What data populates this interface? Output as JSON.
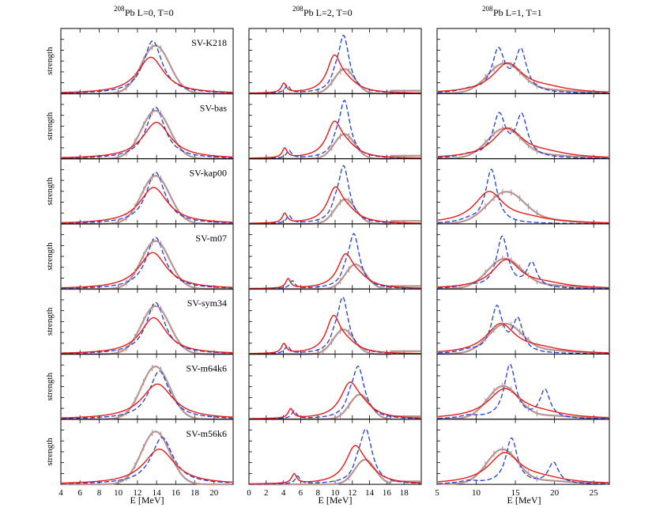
{
  "figure": {
    "ylabel": "strength",
    "xlabel": "E [MeV]",
    "columns": [
      {
        "title_sup": "208",
        "title": "Pb   L=0, T=0",
        "xlim": [
          4,
          22
        ],
        "ticks": [
          4,
          6,
          8,
          10,
          12,
          14,
          16,
          18,
          20
        ]
      },
      {
        "title_sup": "208",
        "title": "Pb   L=2, T=0",
        "xlim": [
          0,
          20
        ],
        "ticks": [
          0,
          2,
          4,
          6,
          8,
          10,
          12,
          14,
          16,
          18
        ]
      },
      {
        "title_sup": "208",
        "title": "Pb   L=1, T=1",
        "xlim": [
          5,
          27
        ],
        "ticks": [
          5,
          10,
          15,
          20,
          25
        ]
      }
    ],
    "rows": [
      "SV-K218",
      "SV-bas",
      "SV-kap00",
      "SV-m07",
      "SV-sym34",
      "SV-m64k6",
      "SV-m56k6"
    ]
  },
  "legend_styles": {
    "red_solid": "#e41a1c",
    "blue_dashed": "#1f3bd6",
    "grey_experiment": "#b89595"
  },
  "chart_data": [
    {
      "type": "line",
      "title": "208Pb L=0, T=0",
      "xlabel": "E [MeV]",
      "ylabel": "strength",
      "xlim": [
        4,
        22
      ],
      "panels": [
        {
          "label": "SV-K218",
          "red": {
            "E": 13.4,
            "w": 1.7,
            "h": 0.62
          },
          "blue": {
            "E": 13.6,
            "w": 1.2,
            "h": 0.9
          },
          "grey": {
            "E": 13.9,
            "w": 1.5,
            "h": 0.82
          }
        },
        {
          "label": "SV-bas",
          "red": {
            "E": 14.0,
            "w": 1.8,
            "h": 0.62
          },
          "blue": {
            "E": 13.9,
            "w": 1.2,
            "h": 0.88
          },
          "grey": {
            "E": 13.9,
            "w": 1.5,
            "h": 0.82
          }
        },
        {
          "label": "SV-kap00",
          "red": {
            "E": 13.7,
            "w": 1.8,
            "h": 0.62
          },
          "blue": {
            "E": 13.9,
            "w": 1.2,
            "h": 0.88
          },
          "grey": {
            "E": 13.9,
            "w": 1.5,
            "h": 0.82
          }
        },
        {
          "label": "SV-m07",
          "red": {
            "E": 13.6,
            "w": 1.8,
            "h": 0.62
          },
          "blue": {
            "E": 13.9,
            "w": 1.2,
            "h": 0.88
          },
          "grey": {
            "E": 13.9,
            "w": 1.5,
            "h": 0.82
          }
        },
        {
          "label": "SV-sym34",
          "red": {
            "E": 13.7,
            "w": 1.7,
            "h": 0.62
          },
          "blue": {
            "E": 13.9,
            "w": 1.2,
            "h": 0.88
          },
          "grey": {
            "E": 13.9,
            "w": 1.5,
            "h": 0.82
          }
        },
        {
          "label": "SV-m64k6",
          "red": {
            "E": 14.1,
            "w": 2.0,
            "h": 0.6
          },
          "blue": {
            "E": 14.3,
            "w": 1.3,
            "h": 0.82
          },
          "grey": {
            "E": 13.9,
            "w": 1.5,
            "h": 0.9
          }
        },
        {
          "label": "SV-m56k6",
          "red": {
            "E": 14.3,
            "w": 2.0,
            "h": 0.6
          },
          "blue": {
            "E": 14.6,
            "w": 1.4,
            "h": 0.8
          },
          "grey": {
            "E": 13.9,
            "w": 1.5,
            "h": 0.9
          }
        }
      ]
    },
    {
      "type": "line",
      "title": "208Pb L=2, T=0",
      "xlabel": "E [MeV]",
      "ylabel": "strength",
      "xlim": [
        0,
        20
      ],
      "panels": [
        {
          "label": "SV-K218",
          "red_low": 4.0,
          "blue_low": 4.4,
          "red": {
            "E": 9.9,
            "w": 1.0,
            "h": 0.58
          },
          "blue": {
            "E": 11.0,
            "w": 0.8,
            "h": 0.97
          }
        },
        {
          "label": "SV-bas",
          "red_low": 4.1,
          "blue_low": 4.6,
          "red": {
            "E": 9.9,
            "w": 1.1,
            "h": 0.56
          },
          "blue": {
            "E": 11.1,
            "w": 0.8,
            "h": 0.97
          }
        },
        {
          "label": "SV-kap00",
          "red_low": 4.1,
          "blue_low": 4.6,
          "red": {
            "E": 10.0,
            "w": 1.1,
            "h": 0.55
          },
          "blue": {
            "E": 11.0,
            "w": 0.8,
            "h": 0.97
          }
        },
        {
          "label": "SV-m07",
          "red_low": 4.5,
          "blue_low": 5.0,
          "red": {
            "E": 11.2,
            "w": 1.1,
            "h": 0.52
          },
          "blue": {
            "E": 12.2,
            "w": 0.8,
            "h": 0.92
          }
        },
        {
          "label": "SV-sym34",
          "red_low": 4.0,
          "blue_low": 4.4,
          "red": {
            "E": 9.8,
            "w": 1.0,
            "h": 0.58
          },
          "blue": {
            "E": 10.9,
            "w": 0.8,
            "h": 0.95
          }
        },
        {
          "label": "SV-m64k6",
          "red_low": 4.8,
          "blue_low": 5.2,
          "red": {
            "E": 11.7,
            "w": 1.3,
            "h": 0.55
          },
          "blue": {
            "E": 12.7,
            "w": 0.9,
            "h": 0.88
          }
        },
        {
          "label": "SV-m56k6",
          "red_low": 5.2,
          "blue_low": 5.6,
          "red": {
            "E": 12.3,
            "w": 1.3,
            "h": 0.58
          },
          "blue": {
            "E": 13.6,
            "w": 0.9,
            "h": 0.92
          }
        }
      ]
    },
    {
      "type": "line",
      "title": "208Pb L=1, T=1",
      "xlabel": "E [MeV]",
      "ylabel": "strength",
      "xlim": [
        5,
        27
      ],
      "panels": [
        {
          "label": "SV-K218",
          "red": {
            "E": 14.0,
            "w": 2.4,
            "h": 0.5
          },
          "blue": [
            {
              "E": 12.8,
              "w": 1.0,
              "h": 0.72
            },
            {
              "E": 15.7,
              "w": 0.9,
              "h": 0.7
            }
          ],
          "grey": {
            "E": 13.6,
            "w": 2.2,
            "h": 0.5
          }
        },
        {
          "label": "SV-bas",
          "red": {
            "E": 14.0,
            "w": 2.4,
            "h": 0.5
          },
          "blue": [
            {
              "E": 12.9,
              "w": 1.0,
              "h": 0.72
            },
            {
              "E": 15.8,
              "w": 0.9,
              "h": 0.7
            }
          ],
          "grey": {
            "E": 13.6,
            "w": 2.2,
            "h": 0.5
          }
        },
        {
          "label": "SV-kap00",
          "red": {
            "E": 11.6,
            "w": 2.3,
            "h": 0.53
          },
          "blue": [
            {
              "E": 11.9,
              "w": 0.9,
              "h": 0.92
            }
          ],
          "grey": {
            "E": 13.8,
            "w": 2.4,
            "h": 0.53
          }
        },
        {
          "label": "SV-m07",
          "red": {
            "E": 13.8,
            "w": 2.2,
            "h": 0.48
          },
          "blue": [
            {
              "E": 13.3,
              "w": 0.9,
              "h": 0.88
            },
            {
              "E": 17.1,
              "w": 0.8,
              "h": 0.42
            }
          ],
          "grey": {
            "E": 13.6,
            "w": 2.2,
            "h": 0.5
          }
        },
        {
          "label": "SV-sym34",
          "red": {
            "E": 13.1,
            "w": 2.3,
            "h": 0.5
          },
          "blue": [
            {
              "E": 12.6,
              "w": 0.9,
              "h": 0.78
            },
            {
              "E": 15.3,
              "w": 0.8,
              "h": 0.55
            }
          ],
          "grey": {
            "E": 13.7,
            "w": 2.2,
            "h": 0.5
          }
        },
        {
          "label": "SV-m64k6",
          "red": {
            "E": 13.6,
            "w": 2.6,
            "h": 0.5
          },
          "blue": [
            {
              "E": 14.3,
              "w": 0.9,
              "h": 0.92
            },
            {
              "E": 18.8,
              "w": 0.8,
              "h": 0.48
            }
          ],
          "grey": {
            "E": 13.4,
            "w": 2.0,
            "h": 0.55
          }
        },
        {
          "label": "SV-m56k6",
          "red": {
            "E": 13.6,
            "w": 2.5,
            "h": 0.52
          },
          "blue": [
            {
              "E": 14.5,
              "w": 0.9,
              "h": 0.78
            },
            {
              "E": 19.9,
              "w": 0.8,
              "h": 0.36
            }
          ],
          "grey": {
            "E": 13.3,
            "w": 2.0,
            "h": 0.58
          }
        }
      ]
    }
  ]
}
